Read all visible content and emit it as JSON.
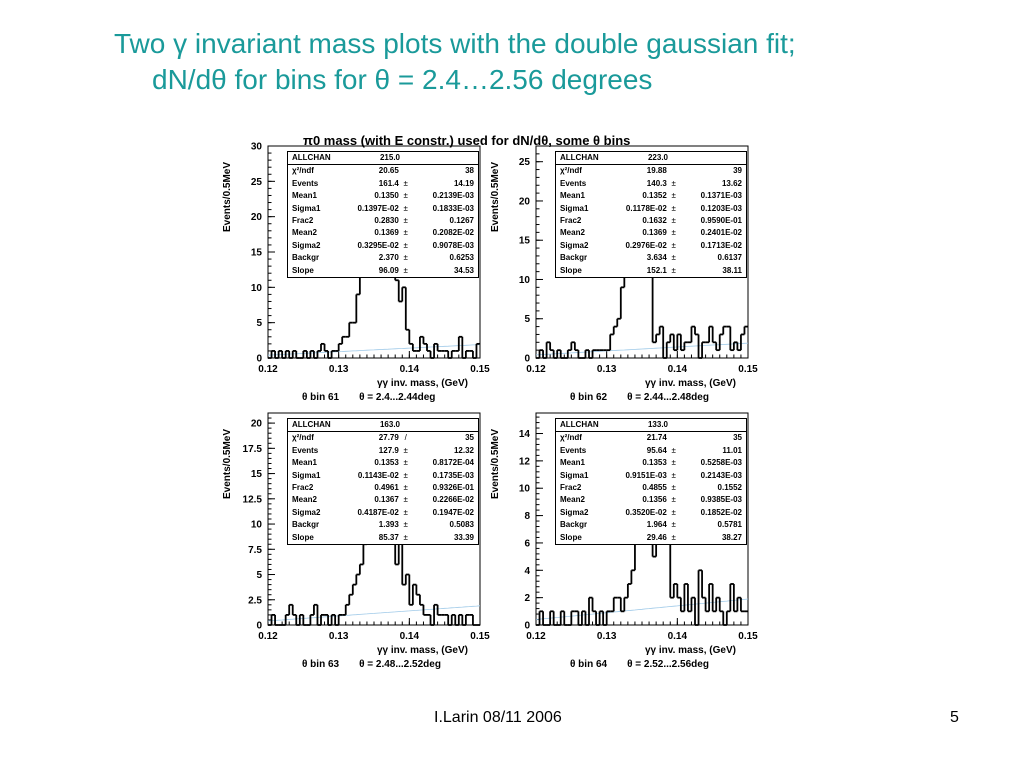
{
  "slide": {
    "title_line1": "Two γ invariant mass plots with the double gaussian fit;",
    "title_line2": "dN/dθ for bins for θ = 2.4…2.56 degrees",
    "author": "I.Larin 08/11 2006",
    "page": "5",
    "title_color": "#1a9a9a"
  },
  "figure_title": "π0 mass (with E constr.) used for dN/dθ, some θ bins",
  "chart_data": [
    {
      "type": "bar",
      "bin_label": "θ bin 61     θ = 2.4...2.44deg",
      "xlabel": "γγ inv. mass, (GeV)",
      "ylabel": "Events/0.5MeV",
      "xlim": [
        0.12,
        0.15
      ],
      "ylim": [
        0,
        30
      ],
      "xticks": [
        "0.12",
        "0.13",
        "0.14",
        "0.15"
      ],
      "yticks": [
        "0",
        "5",
        "10",
        "15",
        "20",
        "25",
        "30"
      ],
      "counts": [
        0,
        1,
        0,
        1,
        0,
        1,
        0,
        1,
        0,
        0,
        1,
        0,
        1,
        0,
        1,
        2,
        1,
        0,
        1,
        1,
        2,
        3,
        3,
        5,
        5,
        9,
        14,
        13,
        12,
        28,
        22,
        23,
        29,
        12,
        12,
        17,
        11,
        8,
        10,
        4,
        2,
        1,
        1,
        3,
        2,
        1,
        0,
        2,
        1,
        1,
        1,
        0,
        1,
        1,
        3,
        0,
        1,
        1,
        0,
        2
      ],
      "stats": {
        "header": [
          "ALLCHAN",
          "215.0"
        ],
        "rows": [
          [
            "χ²/ndf",
            "20.65",
            "",
            "38"
          ],
          [
            "Events",
            "161.4",
            "±",
            "14.19"
          ],
          [
            "Mean1",
            "0.1350",
            "±",
            "0.2139E-03"
          ],
          [
            "Sigma1",
            "0.1397E-02",
            "±",
            "0.1833E-03"
          ],
          [
            "Frac2",
            "0.2830",
            "±",
            "0.1267"
          ],
          [
            "Mean2",
            "0.1369",
            "±",
            "0.2082E-02"
          ],
          [
            "Sigma2",
            "0.3295E-02",
            "±",
            "0.9078E-03"
          ],
          [
            "Backgr",
            "2.370",
            "±",
            "0.6253"
          ],
          [
            "Slope",
            "96.09",
            "±",
            "34.53"
          ]
        ]
      }
    },
    {
      "type": "bar",
      "bin_label": "θ bin 62     θ = 2.44...2.48deg",
      "xlabel": "γγ inv. mass, (GeV)",
      "ylabel": "Events/0.5MeV",
      "xlim": [
        0.12,
        0.15
      ],
      "ylim": [
        0,
        27
      ],
      "xticks": [
        "0.12",
        "0.13",
        "0.14",
        "0.15"
      ],
      "yticks": [
        "0",
        "5",
        "10",
        "15",
        "20",
        "25"
      ],
      "counts": [
        0,
        1,
        0,
        2,
        1,
        0,
        1,
        0,
        0,
        1,
        2,
        1,
        0,
        0,
        1,
        0,
        1,
        1,
        1,
        1,
        1,
        3,
        4,
        5,
        9,
        14,
        13,
        17,
        21,
        22,
        19,
        26,
        12,
        2,
        3,
        4,
        0,
        2,
        3,
        1,
        3,
        1,
        2,
        2,
        4,
        3,
        0,
        2,
        2,
        4,
        2,
        1,
        3,
        4,
        4,
        1,
        2,
        1,
        3,
        4
      ],
      "stats": {
        "header": [
          "ALLCHAN",
          "223.0"
        ],
        "rows": [
          [
            "χ²/ndf",
            "19.88",
            "",
            "39"
          ],
          [
            "Events",
            "140.3",
            "±",
            "13.62"
          ],
          [
            "Mean1",
            "0.1352",
            "±",
            "0.1371E-03"
          ],
          [
            "Sigma1",
            "0.1178E-02",
            "±",
            "0.1203E-03"
          ],
          [
            "Frac2",
            "0.1632",
            "±",
            "0.9590E-01"
          ],
          [
            "Mean2",
            "0.1369",
            "±",
            "0.2401E-02"
          ],
          [
            "Sigma2",
            "0.2976E-02",
            "±",
            "0.1713E-02"
          ],
          [
            "Backgr",
            "3.634",
            "±",
            "0.6137"
          ],
          [
            "Slope",
            "152.1",
            "±",
            "38.11"
          ]
        ]
      }
    },
    {
      "type": "bar",
      "bin_label": "θ bin 63     θ = 2.48...2.52deg",
      "xlabel": "γγ inv. mass, (GeV)",
      "ylabel": "Events/0.5MeV",
      "xlim": [
        0.12,
        0.15
      ],
      "ylim": [
        0,
        21
      ],
      "xticks": [
        "0.12",
        "0.13",
        "0.14",
        "0.15"
      ],
      "yticks": [
        "0",
        "2.5",
        "5",
        "7.5",
        "10",
        "12.5",
        "15",
        "17.5",
        "20"
      ],
      "counts": [
        0,
        1,
        0,
        0,
        0,
        1,
        2,
        1,
        0,
        1,
        0,
        0,
        1,
        2,
        0,
        1,
        1,
        0,
        1,
        0,
        1,
        1,
        2,
        3,
        4,
        5,
        6,
        8,
        10,
        13,
        11,
        20,
        12,
        18,
        9,
        12,
        6,
        11,
        4,
        5,
        2,
        4,
        3,
        2,
        1,
        1,
        0,
        2,
        1,
        1,
        1,
        0,
        1,
        0,
        1,
        0,
        1,
        1,
        0,
        0
      ],
      "stats": {
        "header": [
          "ALLCHAN",
          "163.0"
        ],
        "rows": [
          [
            "χ²/ndf",
            "27.79",
            "/",
            "35"
          ],
          [
            "Events",
            "127.9",
            "±",
            "12.32"
          ],
          [
            "Mean1",
            "0.1353",
            "±",
            "0.8172E-04"
          ],
          [
            "Sigma1",
            "0.1143E-02",
            "±",
            "0.1735E-03"
          ],
          [
            "Frac2",
            "0.4961",
            "±",
            "0.9326E-01"
          ],
          [
            "Mean2",
            "0.1367",
            "±",
            "0.2266E-02"
          ],
          [
            "Sigma2",
            "0.4187E-02",
            "±",
            "0.1947E-02"
          ],
          [
            "Backgr",
            "1.393",
            "±",
            "0.5083"
          ],
          [
            "Slope",
            "85.37",
            "±",
            "33.39"
          ]
        ]
      }
    },
    {
      "type": "bar",
      "bin_label": "θ bin 64     θ = 2.52...2.56deg",
      "xlabel": "γγ inv. mass, (GeV)",
      "ylabel": "Events/0.5MeV",
      "xlim": [
        0.12,
        0.15
      ],
      "ylim": [
        0,
        15.5
      ],
      "xticks": [
        "0.12",
        "0.13",
        "0.14",
        "0.15"
      ],
      "yticks": [
        "0",
        "2",
        "4",
        "6",
        "8",
        "10",
        "12",
        "14"
      ],
      "counts": [
        0,
        1,
        0,
        0,
        1,
        0,
        0,
        1,
        0,
        0,
        1,
        1,
        0,
        1,
        0,
        2,
        1,
        0,
        1,
        0,
        1,
        1,
        2,
        2,
        1,
        2,
        3,
        4,
        6,
        7,
        13,
        11,
        12,
        5,
        8,
        10,
        6,
        9,
        2,
        3,
        2,
        1,
        3,
        1,
        2,
        0,
        4,
        2,
        1,
        3,
        1,
        2,
        1,
        0,
        1,
        3,
        1,
        2,
        1,
        1
      ],
      "stats": {
        "header": [
          "ALLCHAN",
          "133.0"
        ],
        "rows": [
          [
            "χ²/ndf",
            "21.74",
            "",
            "35"
          ],
          [
            "Events",
            "95.64",
            "±",
            "11.01"
          ],
          [
            "Mean1",
            "0.1353",
            "±",
            "0.5258E-03"
          ],
          [
            "Sigma1",
            "0.9151E-03",
            "±",
            "0.2143E-03"
          ],
          [
            "Frac2",
            "0.4855",
            "±",
            "0.1552"
          ],
          [
            "Mean2",
            "0.1356",
            "±",
            "0.9385E-03"
          ],
          [
            "Sigma2",
            "0.3520E-02",
            "±",
            "0.1852E-02"
          ],
          [
            "Backgr",
            "1.964",
            "±",
            "0.5781"
          ],
          [
            "Slope",
            "29.46",
            "±",
            "38.27"
          ]
        ]
      }
    }
  ]
}
